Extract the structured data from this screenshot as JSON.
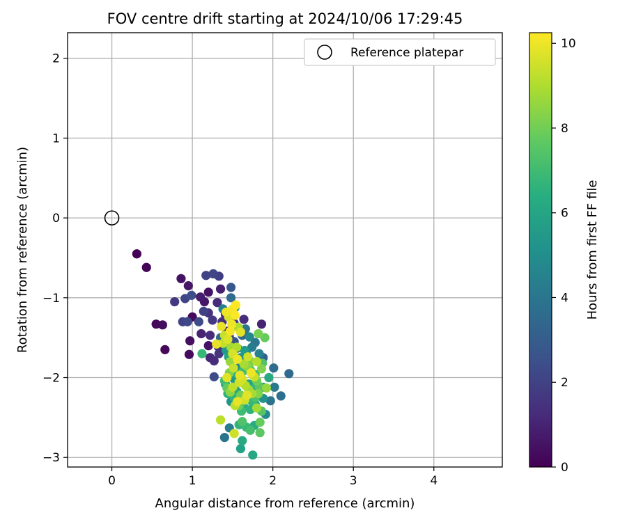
{
  "chart_data": {
    "type": "scatter",
    "title": "FOV centre drift starting at 2024/10/06 17:29:45",
    "xlabel": "Angular distance from reference (arcmin)",
    "ylabel": "Rotation from reference (arcmin)",
    "xlim": [
      -0.55,
      4.85
    ],
    "ylim": [
      -3.12,
      2.32
    ],
    "xticks": [
      0,
      1,
      2,
      3,
      4
    ],
    "yticks": [
      -3,
      -2,
      -1,
      0,
      1,
      2
    ],
    "grid": true,
    "legend": {
      "position": "top-right",
      "entries": [
        "Reference platepar"
      ]
    },
    "reference_point": {
      "name": "Reference platepar",
      "x": 0,
      "y": 0,
      "marker": "open-circle"
    },
    "colorbar": {
      "label": "Hours from first FF file",
      "range": [
        0,
        10.25
      ],
      "ticks": [
        0,
        2,
        4,
        6,
        8,
        10
      ],
      "colormap": "viridis"
    },
    "points": [
      {
        "x": 0.31,
        "y": -0.45,
        "c": 0.0
      },
      {
        "x": 0.43,
        "y": -0.62,
        "c": 0.1
      },
      {
        "x": 0.55,
        "y": -1.33,
        "c": 0.2
      },
      {
        "x": 0.63,
        "y": -1.34,
        "c": 0.3
      },
      {
        "x": 0.66,
        "y": -1.65,
        "c": 0.2
      },
      {
        "x": 0.86,
        "y": -0.76,
        "c": 0.5
      },
      {
        "x": 0.95,
        "y": -0.85,
        "c": 0.6
      },
      {
        "x": 0.78,
        "y": -1.05,
        "c": 1.7
      },
      {
        "x": 0.91,
        "y": -1.01,
        "c": 2.1
      },
      {
        "x": 0.99,
        "y": -0.97,
        "c": 2.4
      },
      {
        "x": 0.97,
        "y": -1.54,
        "c": 0.4
      },
      {
        "x": 0.96,
        "y": -1.71,
        "c": 0.3
      },
      {
        "x": 1.0,
        "y": -1.24,
        "c": 0.3
      },
      {
        "x": 1.1,
        "y": -0.99,
        "c": 0.8
      },
      {
        "x": 1.15,
        "y": -1.05,
        "c": 0.6
      },
      {
        "x": 1.2,
        "y": -0.93,
        "c": 0.5
      },
      {
        "x": 1.17,
        "y": -0.72,
        "c": 2.0
      },
      {
        "x": 1.26,
        "y": -0.7,
        "c": 2.1
      },
      {
        "x": 1.33,
        "y": -0.73,
        "c": 1.9
      },
      {
        "x": 1.35,
        "y": -0.89,
        "c": 0.9
      },
      {
        "x": 1.48,
        "y": -0.87,
        "c": 2.8
      },
      {
        "x": 0.88,
        "y": -1.3,
        "c": 2.0
      },
      {
        "x": 0.94,
        "y": -1.3,
        "c": 2.2
      },
      {
        "x": 1.08,
        "y": -1.3,
        "c": 2.3
      },
      {
        "x": 1.11,
        "y": -1.45,
        "c": 1.0
      },
      {
        "x": 1.14,
        "y": -1.17,
        "c": 2.0
      },
      {
        "x": 1.2,
        "y": -1.19,
        "c": 1.5
      },
      {
        "x": 1.25,
        "y": -1.28,
        "c": 1.7
      },
      {
        "x": 1.22,
        "y": -1.47,
        "c": 1.3
      },
      {
        "x": 1.2,
        "y": -1.6,
        "c": 0.5
      },
      {
        "x": 1.22,
        "y": -1.75,
        "c": 1.1
      },
      {
        "x": 1.27,
        "y": -1.79,
        "c": 1.3
      },
      {
        "x": 1.27,
        "y": -1.99,
        "c": 2.3
      },
      {
        "x": 1.32,
        "y": -1.61,
        "c": 1.2
      },
      {
        "x": 1.31,
        "y": -1.06,
        "c": 1.2
      },
      {
        "x": 1.37,
        "y": -1.3,
        "c": 1.4
      },
      {
        "x": 1.33,
        "y": -1.7,
        "c": 1.6
      },
      {
        "x": 1.41,
        "y": -1.21,
        "c": 1.0
      },
      {
        "x": 1.43,
        "y": -1.42,
        "c": 1.1
      },
      {
        "x": 1.38,
        "y": -1.14,
        "c": 4.4
      },
      {
        "x": 1.48,
        "y": -1.0,
        "c": 3.6
      },
      {
        "x": 1.46,
        "y": -1.49,
        "c": 2.1
      },
      {
        "x": 1.52,
        "y": -1.32,
        "c": 1.8
      },
      {
        "x": 1.53,
        "y": -1.12,
        "c": 5.0
      },
      {
        "x": 1.52,
        "y": -1.55,
        "c": 2.6
      },
      {
        "x": 1.56,
        "y": -1.63,
        "c": 2.9
      },
      {
        "x": 1.64,
        "y": -1.27,
        "c": 1.3
      },
      {
        "x": 1.66,
        "y": -1.39,
        "c": 4.0
      },
      {
        "x": 1.62,
        "y": -1.47,
        "c": 3.3
      },
      {
        "x": 1.67,
        "y": -1.7,
        "c": 4.4
      },
      {
        "x": 1.71,
        "y": -1.49,
        "c": 4.8
      },
      {
        "x": 1.74,
        "y": -1.62,
        "c": 4.3
      },
      {
        "x": 1.78,
        "y": -1.56,
        "c": 4.0
      },
      {
        "x": 1.83,
        "y": -1.7,
        "c": 4.5
      },
      {
        "x": 1.86,
        "y": -1.33,
        "c": 1.0
      },
      {
        "x": 1.88,
        "y": -1.75,
        "c": 3.2
      },
      {
        "x": 1.9,
        "y": -1.5,
        "c": 7.8
      },
      {
        "x": 1.82,
        "y": -1.45,
        "c": 8.1
      },
      {
        "x": 2.01,
        "y": -1.88,
        "c": 3.6
      },
      {
        "x": 2.02,
        "y": -2.12,
        "c": 4.2
      },
      {
        "x": 2.1,
        "y": -2.23,
        "c": 3.7
      },
      {
        "x": 2.2,
        "y": -1.95,
        "c": 3.5
      },
      {
        "x": 1.97,
        "y": -2.29,
        "c": 3.9
      },
      {
        "x": 1.91,
        "y": -2.46,
        "c": 4.9
      },
      {
        "x": 1.88,
        "y": -2.12,
        "c": 5.6
      },
      {
        "x": 1.95,
        "y": -2.0,
        "c": 6.2
      },
      {
        "x": 1.78,
        "y": -1.96,
        "c": 7.0
      },
      {
        "x": 1.87,
        "y": -1.82,
        "c": 7.4
      },
      {
        "x": 1.12,
        "y": -1.7,
        "c": 6.9
      },
      {
        "x": 1.3,
        "y": -1.58,
        "c": 9.9
      },
      {
        "x": 1.36,
        "y": -1.36,
        "c": 9.9
      },
      {
        "x": 1.42,
        "y": -1.18,
        "c": 10.0
      },
      {
        "x": 1.45,
        "y": -1.24,
        "c": 9.6
      },
      {
        "x": 1.5,
        "y": -1.14,
        "c": 10.1
      },
      {
        "x": 1.54,
        "y": -1.09,
        "c": 10.2
      },
      {
        "x": 1.49,
        "y": -1.33,
        "c": 10.0
      },
      {
        "x": 1.53,
        "y": -1.22,
        "c": 10.2
      },
      {
        "x": 1.38,
        "y": -1.57,
        "c": 9.3
      },
      {
        "x": 1.44,
        "y": -1.52,
        "c": 9.7
      },
      {
        "x": 1.5,
        "y": -1.7,
        "c": 9.6
      },
      {
        "x": 1.55,
        "y": -1.62,
        "c": 9.0
      },
      {
        "x": 1.47,
        "y": -1.8,
        "c": 8.6
      },
      {
        "x": 1.51,
        "y": -1.88,
        "c": 9.4
      },
      {
        "x": 1.56,
        "y": -1.77,
        "c": 10.0
      },
      {
        "x": 1.43,
        "y": -2.0,
        "c": 9.8
      },
      {
        "x": 1.46,
        "y": -1.94,
        "c": 8.2
      },
      {
        "x": 1.4,
        "y": -2.04,
        "c": 7.1
      },
      {
        "x": 1.43,
        "y": -2.13,
        "c": 7.7
      },
      {
        "x": 1.47,
        "y": -2.18,
        "c": 8.5
      },
      {
        "x": 1.5,
        "y": -2.12,
        "c": 9.2
      },
      {
        "x": 1.44,
        "y": -2.2,
        "c": 6.5
      },
      {
        "x": 1.41,
        "y": -2.08,
        "c": 5.8
      },
      {
        "x": 1.59,
        "y": -1.97,
        "c": 9.9
      },
      {
        "x": 1.62,
        "y": -2.02,
        "c": 9.6
      },
      {
        "x": 1.58,
        "y": -2.06,
        "c": 9.5
      },
      {
        "x": 1.64,
        "y": -1.83,
        "c": 8.9
      },
      {
        "x": 1.68,
        "y": -1.86,
        "c": 8.4
      },
      {
        "x": 1.72,
        "y": -1.9,
        "c": 7.8
      },
      {
        "x": 1.66,
        "y": -2.1,
        "c": 9.1
      },
      {
        "x": 1.7,
        "y": -2.15,
        "c": 8.7
      },
      {
        "x": 1.73,
        "y": -1.94,
        "c": 10.0
      },
      {
        "x": 1.77,
        "y": -1.99,
        "c": 9.4
      },
      {
        "x": 1.8,
        "y": -2.04,
        "c": 8.0
      },
      {
        "x": 1.83,
        "y": -2.11,
        "c": 7.6
      },
      {
        "x": 1.82,
        "y": -2.2,
        "c": 8.3
      },
      {
        "x": 1.78,
        "y": -2.25,
        "c": 7.3
      },
      {
        "x": 1.74,
        "y": -2.3,
        "c": 6.8
      },
      {
        "x": 1.68,
        "y": -2.22,
        "c": 9.8
      },
      {
        "x": 1.65,
        "y": -2.28,
        "c": 9.5
      },
      {
        "x": 1.56,
        "y": -2.3,
        "c": 9.9
      },
      {
        "x": 1.53,
        "y": -2.35,
        "c": 9.2
      },
      {
        "x": 1.61,
        "y": -2.42,
        "c": 7.0
      },
      {
        "x": 1.72,
        "y": -2.4,
        "c": 6.6
      },
      {
        "x": 1.78,
        "y": -2.33,
        "c": 6.1
      },
      {
        "x": 1.8,
        "y": -2.38,
        "c": 8.8
      },
      {
        "x": 1.86,
        "y": -2.42,
        "c": 7.5
      },
      {
        "x": 1.84,
        "y": -2.56,
        "c": 7.8
      },
      {
        "x": 1.77,
        "y": -2.6,
        "c": 6.3
      },
      {
        "x": 1.72,
        "y": -2.66,
        "c": 7.2
      },
      {
        "x": 1.67,
        "y": -2.62,
        "c": 6.9
      },
      {
        "x": 1.62,
        "y": -2.55,
        "c": 7.4
      },
      {
        "x": 1.58,
        "y": -2.59,
        "c": 6.7
      },
      {
        "x": 1.52,
        "y": -2.7,
        "c": 9.5
      },
      {
        "x": 1.46,
        "y": -2.63,
        "c": 4.4
      },
      {
        "x": 1.4,
        "y": -2.75,
        "c": 3.9
      },
      {
        "x": 1.62,
        "y": -2.79,
        "c": 6.2
      },
      {
        "x": 1.6,
        "y": -2.89,
        "c": 5.9
      },
      {
        "x": 1.75,
        "y": -2.97,
        "c": 6.1
      },
      {
        "x": 1.84,
        "y": -2.69,
        "c": 7.6
      },
      {
        "x": 1.35,
        "y": -2.53,
        "c": 9.2
      },
      {
        "x": 1.88,
        "y": -2.26,
        "c": 5.2
      },
      {
        "x": 1.92,
        "y": -2.13,
        "c": 8.6
      },
      {
        "x": 1.6,
        "y": -1.75,
        "c": 5.2
      },
      {
        "x": 1.65,
        "y": -1.66,
        "c": 5.6
      },
      {
        "x": 1.48,
        "y": -1.62,
        "c": 8.8
      },
      {
        "x": 1.45,
        "y": -1.74,
        "c": 6.0
      },
      {
        "x": 1.42,
        "y": -1.66,
        "c": 5.5
      },
      {
        "x": 1.55,
        "y": -1.95,
        "c": 6.4
      },
      {
        "x": 1.63,
        "y": -1.92,
        "c": 7.0
      },
      {
        "x": 1.57,
        "y": -1.88,
        "c": 4.8
      },
      {
        "x": 1.52,
        "y": -2.02,
        "c": 5.5
      },
      {
        "x": 1.55,
        "y": -2.17,
        "c": 6.0
      },
      {
        "x": 1.6,
        "y": -2.22,
        "c": 8.0
      },
      {
        "x": 1.52,
        "y": -2.25,
        "c": 6.6
      },
      {
        "x": 1.48,
        "y": -2.3,
        "c": 5.3
      },
      {
        "x": 1.58,
        "y": -2.35,
        "c": 7.9
      },
      {
        "x": 1.64,
        "y": -2.37,
        "c": 6.4
      },
      {
        "x": 1.7,
        "y": -2.08,
        "c": 5.9
      },
      {
        "x": 1.75,
        "y": -2.14,
        "c": 6.5
      },
      {
        "x": 1.74,
        "y": -2.2,
        "c": 8.9
      },
      {
        "x": 1.86,
        "y": -1.89,
        "c": 8.3
      },
      {
        "x": 1.8,
        "y": -1.8,
        "c": 9.1
      },
      {
        "x": 1.69,
        "y": -1.74,
        "c": 9.5
      },
      {
        "x": 1.73,
        "y": -1.8,
        "c": 8.1
      },
      {
        "x": 1.6,
        "y": -1.43,
        "c": 9.8
      },
      {
        "x": 1.57,
        "y": -1.37,
        "c": 9.0
      },
      {
        "x": 1.47,
        "y": -1.42,
        "c": 10.1
      },
      {
        "x": 1.4,
        "y": -1.47,
        "c": 9.4
      },
      {
        "x": 1.35,
        "y": -1.5,
        "c": 3.5
      },
      {
        "x": 1.43,
        "y": -1.57,
        "c": 4.5
      }
    ]
  }
}
